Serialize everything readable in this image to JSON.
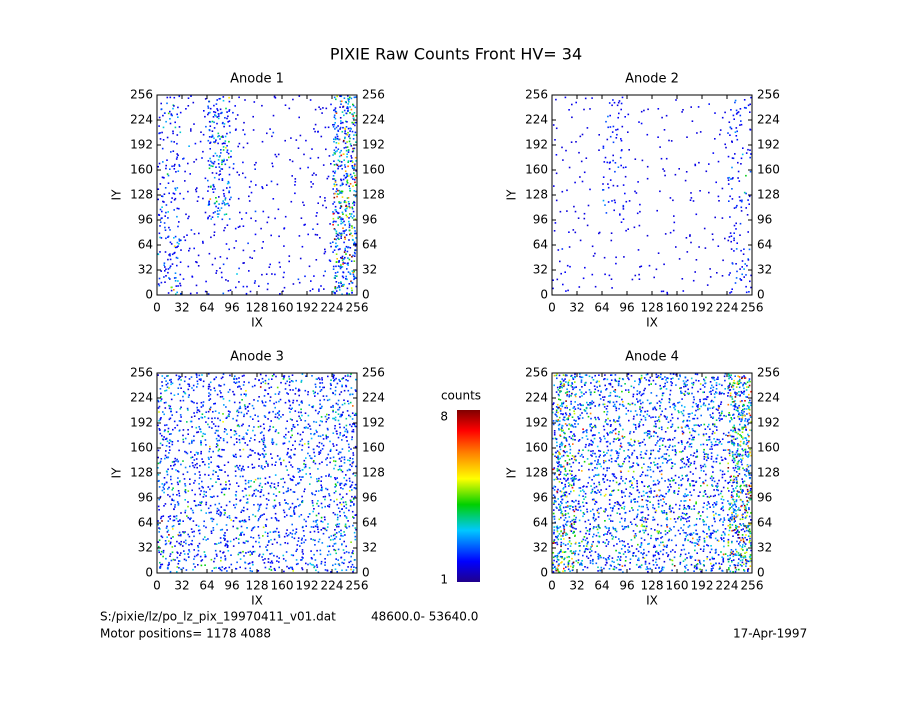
{
  "title": "PIXIE Raw Counts Front HV= 34",
  "chart_data": [
    {
      "type": "heatmap",
      "title": "Anode 1",
      "xlabel": "IX",
      "ylabel": "IY",
      "xlim": [
        0,
        256
      ],
      "ylim": [
        0,
        256
      ],
      "xticks": [
        0,
        32,
        64,
        96,
        128,
        160,
        192,
        224,
        256
      ],
      "yticks": [
        0,
        32,
        64,
        96,
        128,
        160,
        192,
        224,
        256
      ],
      "x_bins": [
        0,
        32,
        64,
        96,
        128,
        160,
        192,
        224,
        256
      ],
      "y_bins": [
        0,
        32,
        64,
        96,
        128,
        160,
        192,
        224,
        256
      ],
      "values": [
        [
          0.6,
          0.15,
          0.2,
          0.2,
          0.15,
          0.15,
          0.2,
          1.2
        ],
        [
          0.6,
          0.15,
          0.15,
          0.15,
          0.1,
          0.1,
          0.15,
          1.2
        ],
        [
          0.5,
          0.15,
          0.15,
          0.15,
          0.1,
          0.1,
          0.15,
          1.3
        ],
        [
          0.5,
          0.15,
          0.9,
          0.15,
          0.1,
          0.1,
          0.15,
          1.4
        ],
        [
          0.4,
          0.15,
          0.6,
          0.15,
          0.1,
          0.1,
          0.15,
          1.3
        ],
        [
          0.4,
          0.15,
          0.9,
          0.15,
          0.1,
          0.1,
          0.15,
          1.2
        ],
        [
          0.4,
          0.15,
          0.9,
          0.15,
          0.1,
          0.1,
          0.15,
          1.3
        ],
        [
          0.5,
          0.15,
          0.8,
          0.15,
          0.1,
          0.1,
          0.15,
          1.2
        ]
      ]
    },
    {
      "type": "heatmap",
      "title": "Anode 2",
      "xlabel": "IX",
      "ylabel": "IY",
      "xlim": [
        0,
        256
      ],
      "ylim": [
        0,
        256
      ],
      "xticks": [
        0,
        32,
        64,
        96,
        128,
        160,
        192,
        224,
        256
      ],
      "yticks": [
        0,
        32,
        64,
        96,
        128,
        160,
        192,
        224,
        256
      ],
      "x_bins": [
        0,
        32,
        64,
        96,
        128,
        160,
        192,
        224,
        256
      ],
      "y_bins": [
        0,
        32,
        64,
        96,
        128,
        160,
        192,
        224,
        256
      ],
      "values": [
        [
          0.15,
          0.08,
          0.08,
          0.08,
          0.1,
          0.08,
          0.08,
          0.4
        ],
        [
          0.12,
          0.08,
          0.08,
          0.08,
          0.08,
          0.08,
          0.08,
          0.35
        ],
        [
          0.1,
          0.08,
          0.08,
          0.08,
          0.08,
          0.08,
          0.08,
          0.3
        ],
        [
          0.1,
          0.08,
          0.3,
          0.08,
          0.08,
          0.08,
          0.08,
          0.35
        ],
        [
          0.1,
          0.08,
          0.25,
          0.08,
          0.08,
          0.08,
          0.08,
          0.3
        ],
        [
          0.1,
          0.08,
          0.35,
          0.08,
          0.08,
          0.08,
          0.08,
          0.3
        ],
        [
          0.1,
          0.08,
          0.3,
          0.08,
          0.08,
          0.08,
          0.08,
          0.35
        ],
        [
          0.12,
          0.08,
          0.3,
          0.08,
          0.08,
          0.08,
          0.08,
          0.35
        ]
      ]
    },
    {
      "type": "heatmap",
      "title": "Anode 3",
      "xlabel": "IX",
      "ylabel": "IY",
      "xlim": [
        0,
        256
      ],
      "ylim": [
        0,
        256
      ],
      "xticks": [
        0,
        32,
        64,
        96,
        128,
        160,
        192,
        224,
        256
      ],
      "yticks": [
        0,
        32,
        64,
        96,
        128,
        160,
        192,
        224,
        256
      ],
      "x_bins": [
        0,
        32,
        64,
        96,
        128,
        160,
        192,
        224,
        256
      ],
      "y_bins": [
        0,
        32,
        64,
        96,
        128,
        160,
        192,
        224,
        256
      ],
      "values": [
        [
          0.8,
          0.6,
          0.6,
          0.6,
          0.6,
          0.6,
          0.6,
          0.8
        ],
        [
          0.8,
          0.6,
          0.6,
          0.6,
          0.6,
          0.6,
          0.6,
          0.8
        ],
        [
          0.7,
          0.6,
          0.6,
          0.6,
          0.6,
          0.6,
          0.6,
          0.8
        ],
        [
          0.7,
          0.6,
          0.6,
          0.6,
          0.6,
          0.6,
          0.6,
          0.8
        ],
        [
          0.7,
          0.6,
          0.6,
          0.6,
          0.6,
          0.6,
          0.6,
          0.8
        ],
        [
          0.7,
          0.6,
          0.6,
          0.6,
          0.6,
          0.6,
          0.6,
          0.8
        ],
        [
          0.7,
          0.6,
          0.6,
          0.6,
          0.6,
          0.6,
          0.6,
          0.8
        ],
        [
          0.7,
          0.6,
          0.6,
          0.6,
          0.6,
          0.6,
          0.6,
          0.8
        ]
      ]
    },
    {
      "type": "heatmap",
      "title": "Anode 4",
      "xlabel": "IX",
      "ylabel": "IY",
      "xlim": [
        0,
        256
      ],
      "ylim": [
        0,
        256
      ],
      "xticks": [
        0,
        32,
        64,
        96,
        128,
        160,
        192,
        224,
        256
      ],
      "yticks": [
        0,
        32,
        64,
        96,
        128,
        160,
        192,
        224,
        256
      ],
      "x_bins": [
        0,
        32,
        64,
        96,
        128,
        160,
        192,
        224,
        256
      ],
      "y_bins": [
        0,
        32,
        64,
        96,
        128,
        160,
        192,
        224,
        256
      ],
      "values": [
        [
          1.6,
          0.9,
          0.8,
          0.8,
          0.8,
          0.8,
          0.9,
          1.8
        ],
        [
          1.5,
          0.9,
          0.8,
          0.8,
          0.8,
          0.8,
          0.9,
          1.8
        ],
        [
          1.4,
          0.8,
          0.8,
          0.8,
          0.8,
          0.8,
          0.8,
          1.7
        ],
        [
          1.4,
          0.8,
          0.8,
          0.8,
          0.8,
          0.8,
          0.8,
          1.7
        ],
        [
          1.4,
          0.8,
          0.8,
          0.8,
          0.8,
          0.8,
          0.8,
          1.6
        ],
        [
          1.3,
          0.8,
          0.8,
          0.8,
          0.8,
          0.8,
          0.8,
          1.6
        ],
        [
          1.3,
          0.8,
          0.8,
          0.8,
          0.8,
          0.8,
          0.8,
          1.6
        ],
        [
          1.4,
          0.9,
          0.8,
          0.8,
          0.8,
          0.8,
          0.9,
          1.7
        ]
      ]
    }
  ],
  "colorbar": {
    "label": "counts",
    "range": [
      1,
      8
    ],
    "ticks": [
      1,
      8
    ]
  },
  "footer": {
    "file": "S:/pixie/lz/po_lz_pix_19970411_v01.dat",
    "range": "48600.0- 53640.0",
    "motor": "Motor positions= 1178 4088",
    "date": "17-Apr-1997"
  }
}
